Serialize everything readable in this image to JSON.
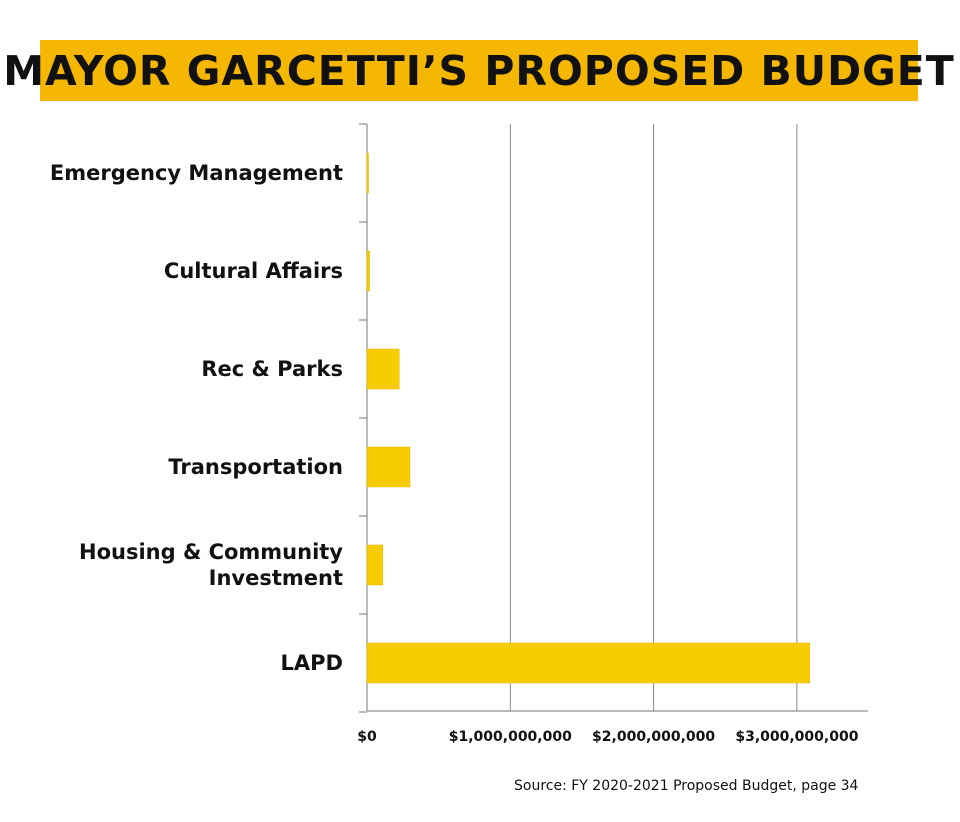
{
  "colors": {
    "banner": "#F5B701",
    "bar": "#F7CC00",
    "bar_edge": "#E8B800",
    "grid": "#888888",
    "axis": "#777777",
    "text": "#111111"
  },
  "chart_data": {
    "type": "bar",
    "orientation": "horizontal",
    "title": "MAYOR GARCETTI’S PROPOSED BUDGET",
    "categories": [
      [
        "Emergency Management"
      ],
      [
        "Cultural Affairs"
      ],
      [
        "Rec & Parks"
      ],
      [
        "Transportation"
      ],
      [
        "Housing & Community",
        "Investment"
      ],
      [
        "LAPD"
      ]
    ],
    "values": [
      3000000,
      18000000,
      225000000,
      300000000,
      110000000,
      3090000000
    ],
    "xlim": [
      0,
      3500000000
    ],
    "xticks": [
      0,
      1000000000,
      2000000000,
      3000000000
    ],
    "xtick_labels": [
      "$0",
      "$1,000,000,000",
      "$2,000,000,000",
      "$3,000,000,000"
    ],
    "grid": true,
    "xlabel": "",
    "ylabel": ""
  },
  "source": "Source: FY 2020-2021 Proposed Budget, page 34"
}
